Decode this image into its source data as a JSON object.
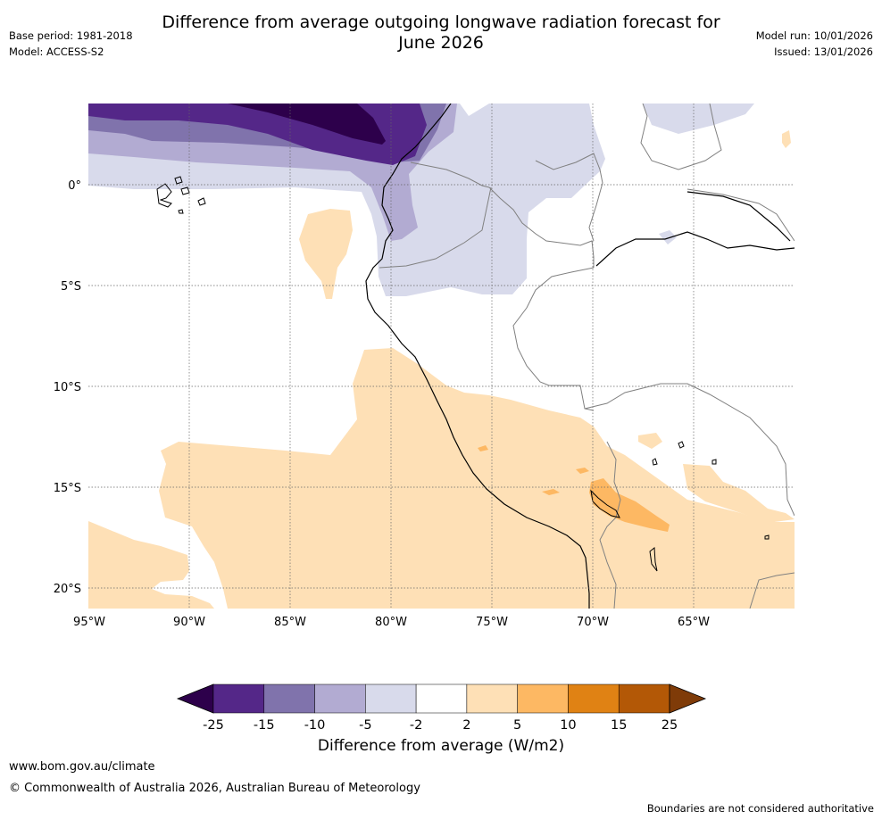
{
  "header": {
    "title_line1": "Difference from average outgoing longwave radiation forecast for",
    "title_line2": "June 2026",
    "base_period": "Base period: 1981-2018",
    "model": "Model: ACCESS-S2",
    "model_run": "Model run: 10/01/2026",
    "issued": "Issued: 13/01/2026"
  },
  "map": {
    "lat_labels": [
      "0°",
      "5°S",
      "10°S",
      "15°S",
      "20°S"
    ],
    "lon_labels": [
      "95°W",
      "90°W",
      "85°W",
      "80°W",
      "75°W",
      "70°W",
      "65°W"
    ]
  },
  "colorbar": {
    "title": "Difference from average (W/m2)",
    "tick_labels": [
      "-25",
      "-15",
      "-10",
      "-5",
      "-2",
      "2",
      "5",
      "10",
      "15",
      "25"
    ],
    "colors": [
      "#2d004b",
      "#542788",
      "#8073ac",
      "#b2abd2",
      "#d8daeb",
      "#ffffff",
      "#fee0b6",
      "#fdb863",
      "#e08214",
      "#b35806",
      "#7f3b08"
    ]
  },
  "footer": {
    "website": "www.bom.gov.au/climate",
    "copyright": "© Commonwealth of Australia 2026, Australian Bureau of Meteorology",
    "disclaimer": "Boundaries are not considered authoritative"
  }
}
